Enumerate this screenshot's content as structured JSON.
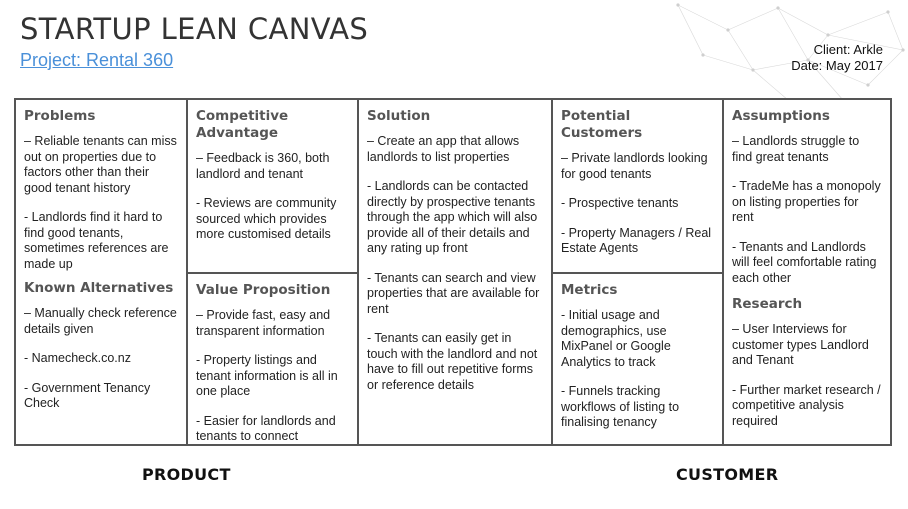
{
  "header": {
    "title": "STARTUP LEAN CANVAS",
    "project": "Project: Rental 360",
    "client": "Client: Arkle",
    "date": "Date: May 2017"
  },
  "sections": {
    "problems": {
      "title": "Problems",
      "items": [
        "– Reliable tenants can miss out on properties due to factors other than their good tenant history",
        "- Landlords find it hard to find good tenants, sometimes references are made up"
      ]
    },
    "known_alternatives": {
      "title": "Known Alternatives",
      "items": [
        "– Manually check reference details given",
        "- Namecheck.co.nz",
        "- Government Tenancy Check"
      ]
    },
    "competitive_advantage": {
      "title": "Competitive Advantage",
      "items": [
        "– Feedback is 360, both landlord and tenant",
        "- Reviews are community sourced which provides more customised details"
      ]
    },
    "value_proposition": {
      "title": "Value Proposition",
      "items": [
        "– Provide fast, easy and transparent information",
        "- Property listings and tenant information is all in one place",
        "- Easier for landlords and tenants to connect"
      ]
    },
    "solution": {
      "title": "Solution",
      "items": [
        "– Create an app that allows landlords to list properties",
        "- Landlords can be contacted directly by prospective tenants through the app which will also provide all of their details and any rating up front",
        "- Tenants can search and view properties that are available for rent",
        "- Tenants can easily get in touch with the landlord and not have to fill out repetitive forms or reference details"
      ]
    },
    "potential_customers": {
      "title": "Potential Customers",
      "items": [
        "– Private landlords looking for good tenants",
        "- Prospective tenants",
        "- Property Managers / Real Estate Agents"
      ]
    },
    "metrics": {
      "title": "Metrics",
      "items": [
        "- Initial usage and demographics, use MixPanel or Google Analytics to track",
        "- Funnels tracking workflows of listing to finalising tenancy"
      ]
    },
    "assumptions": {
      "title": "Assumptions",
      "items": [
        "– Landlords struggle to find great tenants",
        "- TradeMe has a monopoly on listing properties for rent",
        "- Tenants and Landlords will feel comfortable rating each other"
      ]
    },
    "research": {
      "title": "Research",
      "items": [
        "– User Interviews for customer types Landlord and Tenant",
        "- Further market research / competitive analysis required"
      ]
    }
  },
  "footer": {
    "product": "PRODUCT",
    "customer": "CUSTOMER"
  }
}
